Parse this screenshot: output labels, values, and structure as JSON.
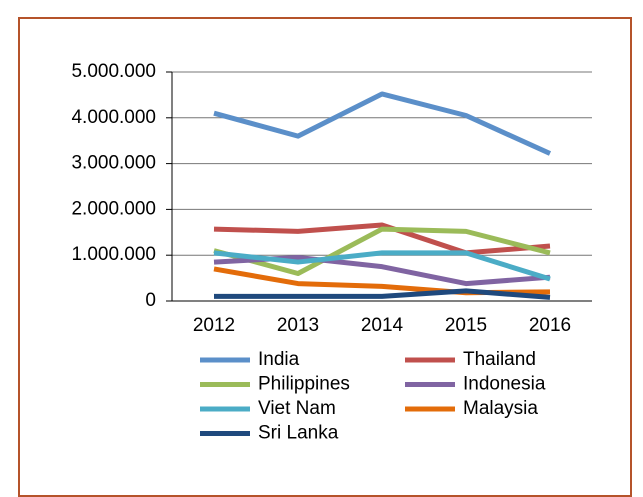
{
  "chart_data": {
    "type": "line",
    "categories": [
      "2012",
      "2013",
      "2014",
      "2015",
      "2016"
    ],
    "series": [
      {
        "name": "India",
        "color": "#5b8fc9",
        "values": [
          4100000,
          3600000,
          4520000,
          4050000,
          3220000
        ]
      },
      {
        "name": "Thailand",
        "color": "#c0504d",
        "values": [
          1570000,
          1520000,
          1660000,
          1050000,
          1200000
        ]
      },
      {
        "name": "Philippines",
        "color": "#9bbb59",
        "values": [
          1100000,
          600000,
          1570000,
          1520000,
          1050000
        ]
      },
      {
        "name": "Indonesia",
        "color": "#8064a2",
        "values": [
          850000,
          950000,
          750000,
          380000,
          520000
        ]
      },
      {
        "name": "Viet Nam",
        "color": "#4bacc6",
        "values": [
          1050000,
          850000,
          1050000,
          1050000,
          480000
        ]
      },
      {
        "name": "Malaysia",
        "color": "#e36c0a",
        "values": [
          700000,
          380000,
          320000,
          180000,
          200000
        ]
      },
      {
        "name": "Sri Lanka",
        "color": "#1f497d",
        "values": [
          100000,
          100000,
          100000,
          220000,
          80000
        ]
      }
    ],
    "ylim": [
      0,
      5000000
    ],
    "yticks": [
      0,
      {
        "value": 1000000,
        "label": "1.000.000"
      },
      {
        "value": 2000000,
        "label": "2.000.000"
      },
      {
        "value": 3000000,
        "label": "3.000.000"
      },
      {
        "value": 4000000,
        "label": "4.000.000"
      },
      {
        "value": 5000000,
        "label": "5.000.000"
      }
    ],
    "grid": true,
    "legend": "bottom"
  }
}
